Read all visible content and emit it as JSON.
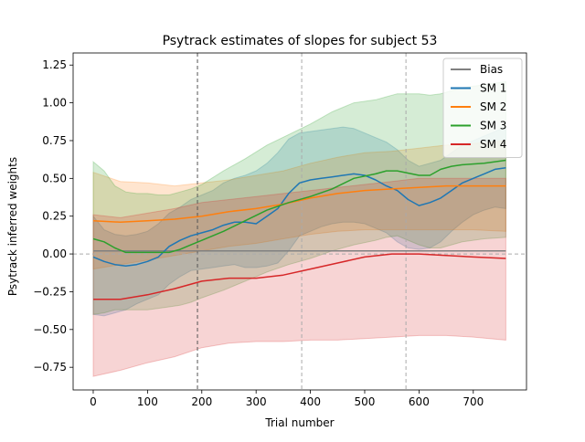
{
  "chart_data": {
    "type": "line",
    "title": "Psytrack estimates of slopes for subject 53",
    "xlabel": "Trial number",
    "ylabel": "Psytrack inferred weights",
    "xlim": [
      -37,
      798
    ],
    "ylim": [
      -0.9,
      1.33
    ],
    "xticks": [
      0,
      100,
      200,
      300,
      400,
      500,
      600,
      700
    ],
    "yticks": [
      -0.75,
      -0.5,
      -0.25,
      0.0,
      0.25,
      0.5,
      0.75,
      1.0,
      1.25
    ],
    "ytick_labels": [
      "−0.75",
      "−0.50",
      "−0.25",
      "0.00",
      "0.25",
      "0.50",
      "0.75",
      "1.00",
      "1.25"
    ],
    "grid": false,
    "legend": "top-right",
    "vlines": [
      {
        "x": 192,
        "style": "dashed",
        "color": "#555555"
      },
      {
        "x": 384,
        "style": "dashed",
        "color": "#aaaaaa"
      },
      {
        "x": 576,
        "style": "dashed",
        "color": "#aaaaaa"
      }
    ],
    "hline": {
      "y": 0,
      "style": "dashed",
      "color": "#aaaaaa"
    },
    "series": [
      {
        "name": "Bias",
        "color": "#808080",
        "x": [
          0,
          100,
          200,
          300,
          400,
          500,
          600,
          700,
          760
        ],
        "y": [
          0.02,
          0.02,
          0.02,
          0.02,
          0.02,
          0.02,
          0.02,
          0.02,
          0.02
        ],
        "upper": [
          0.02,
          0.02,
          0.02,
          0.02,
          0.02,
          0.02,
          0.02,
          0.02,
          0.02
        ],
        "lower": [
          0.02,
          0.02,
          0.02,
          0.02,
          0.02,
          0.02,
          0.02,
          0.02,
          0.02
        ]
      },
      {
        "name": "SM 1",
        "color": "#1f77b4",
        "x": [
          0,
          20,
          40,
          60,
          80,
          100,
          120,
          140,
          160,
          180,
          200,
          220,
          240,
          260,
          280,
          300,
          320,
          340,
          360,
          380,
          400,
          420,
          440,
          460,
          480,
          500,
          520,
          540,
          560,
          580,
          600,
          620,
          640,
          660,
          680,
          700,
          720,
          740,
          760
        ],
        "y": [
          -0.02,
          -0.05,
          -0.07,
          -0.08,
          -0.07,
          -0.05,
          -0.02,
          0.05,
          0.09,
          0.12,
          0.14,
          0.16,
          0.19,
          0.21,
          0.21,
          0.2,
          0.25,
          0.3,
          0.4,
          0.47,
          0.49,
          0.5,
          0.51,
          0.52,
          0.53,
          0.52,
          0.49,
          0.45,
          0.42,
          0.36,
          0.32,
          0.34,
          0.37,
          0.42,
          0.47,
          0.5,
          0.53,
          0.56,
          0.57
        ],
        "upper": [
          0.25,
          0.16,
          0.13,
          0.12,
          0.13,
          0.15,
          0.2,
          0.27,
          0.31,
          0.36,
          0.39,
          0.42,
          0.47,
          0.5,
          0.52,
          0.55,
          0.6,
          0.67,
          0.76,
          0.8,
          0.81,
          0.82,
          0.83,
          0.84,
          0.83,
          0.8,
          0.77,
          0.74,
          0.69,
          0.62,
          0.58,
          0.6,
          0.62,
          0.67,
          0.72,
          0.75,
          0.78,
          0.81,
          0.84
        ],
        "lower": [
          -0.4,
          -0.41,
          -0.39,
          -0.37,
          -0.33,
          -0.3,
          -0.27,
          -0.2,
          -0.15,
          -0.11,
          -0.1,
          -0.09,
          -0.08,
          -0.07,
          -0.09,
          -0.09,
          -0.08,
          -0.06,
          0.02,
          0.12,
          0.15,
          0.18,
          0.2,
          0.21,
          0.21,
          0.2,
          0.17,
          0.14,
          0.08,
          0.04,
          0.03,
          0.04,
          0.08,
          0.15,
          0.21,
          0.26,
          0.29,
          0.31,
          0.3
        ]
      },
      {
        "name": "SM 2",
        "color": "#ff7f0e",
        "x": [
          0,
          50,
          100,
          150,
          200,
          250,
          300,
          350,
          400,
          450,
          500,
          550,
          600,
          650,
          700,
          760
        ],
        "y": [
          0.22,
          0.21,
          0.22,
          0.23,
          0.25,
          0.28,
          0.3,
          0.33,
          0.37,
          0.4,
          0.42,
          0.43,
          0.44,
          0.45,
          0.45,
          0.45
        ],
        "upper": [
          0.54,
          0.48,
          0.47,
          0.45,
          0.47,
          0.49,
          0.52,
          0.55,
          0.6,
          0.64,
          0.67,
          0.68,
          0.7,
          0.72,
          0.73,
          0.75
        ],
        "lower": [
          -0.1,
          -0.07,
          -0.04,
          -0.01,
          0.02,
          0.05,
          0.07,
          0.1,
          0.13,
          0.15,
          0.16,
          0.16,
          0.16,
          0.16,
          0.16,
          0.15
        ]
      },
      {
        "name": "SM 3",
        "color": "#2ca02c",
        "x": [
          0,
          20,
          40,
          60,
          80,
          100,
          120,
          140,
          160,
          180,
          200,
          240,
          280,
          320,
          360,
          400,
          440,
          480,
          520,
          540,
          560,
          600,
          620,
          640,
          660,
          680,
          720,
          760
        ],
        "y": [
          0.1,
          0.08,
          0.04,
          0.01,
          0.01,
          0.01,
          0.01,
          0.01,
          0.03,
          0.06,
          0.09,
          0.15,
          0.22,
          0.29,
          0.34,
          0.38,
          0.43,
          0.5,
          0.53,
          0.55,
          0.55,
          0.52,
          0.52,
          0.56,
          0.58,
          0.59,
          0.6,
          0.62
        ],
        "upper": [
          0.61,
          0.55,
          0.45,
          0.41,
          0.4,
          0.4,
          0.39,
          0.39,
          0.41,
          0.43,
          0.46,
          0.55,
          0.63,
          0.72,
          0.79,
          0.86,
          0.94,
          1.0,
          1.02,
          1.04,
          1.06,
          1.06,
          1.05,
          1.06,
          1.08,
          1.1,
          1.12,
          1.14
        ],
        "lower": [
          -0.4,
          -0.39,
          -0.37,
          -0.37,
          -0.37,
          -0.37,
          -0.36,
          -0.35,
          -0.34,
          -0.32,
          -0.29,
          -0.24,
          -0.18,
          -0.12,
          -0.07,
          -0.03,
          0.02,
          0.06,
          0.09,
          0.11,
          0.12,
          0.06,
          0.04,
          0.04,
          0.06,
          0.08,
          0.1,
          0.11
        ]
      },
      {
        "name": "SM 4",
        "color": "#d62728",
        "x": [
          0,
          50,
          100,
          150,
          200,
          250,
          300,
          350,
          400,
          450,
          500,
          550,
          600,
          650,
          700,
          760
        ],
        "y": [
          -0.3,
          -0.3,
          -0.27,
          -0.23,
          -0.18,
          -0.16,
          -0.16,
          -0.14,
          -0.1,
          -0.06,
          -0.02,
          0.0,
          0.0,
          -0.01,
          -0.02,
          -0.03
        ],
        "upper": [
          0.26,
          0.24,
          0.27,
          0.3,
          0.34,
          0.36,
          0.38,
          0.4,
          0.42,
          0.44,
          0.46,
          0.48,
          0.5,
          0.5,
          0.5,
          0.5
        ],
        "lower": [
          -0.81,
          -0.77,
          -0.72,
          -0.68,
          -0.62,
          -0.59,
          -0.58,
          -0.58,
          -0.57,
          -0.57,
          -0.56,
          -0.55,
          -0.54,
          -0.54,
          -0.55,
          -0.57
        ]
      }
    ]
  }
}
